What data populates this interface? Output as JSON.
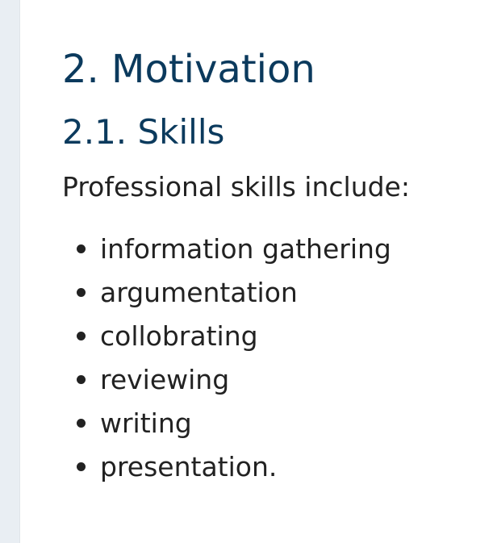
{
  "section": {
    "heading": "2. Motivation",
    "subheading": "2.1. Skills",
    "intro": "Professional skills include:",
    "items": [
      "information gathering",
      "argumentation",
      "collobrating",
      "reviewing",
      "writing",
      "presentation."
    ]
  },
  "colors": {
    "heading": "#0b3a5d",
    "text": "#222222",
    "rail": "#e9eef3"
  }
}
